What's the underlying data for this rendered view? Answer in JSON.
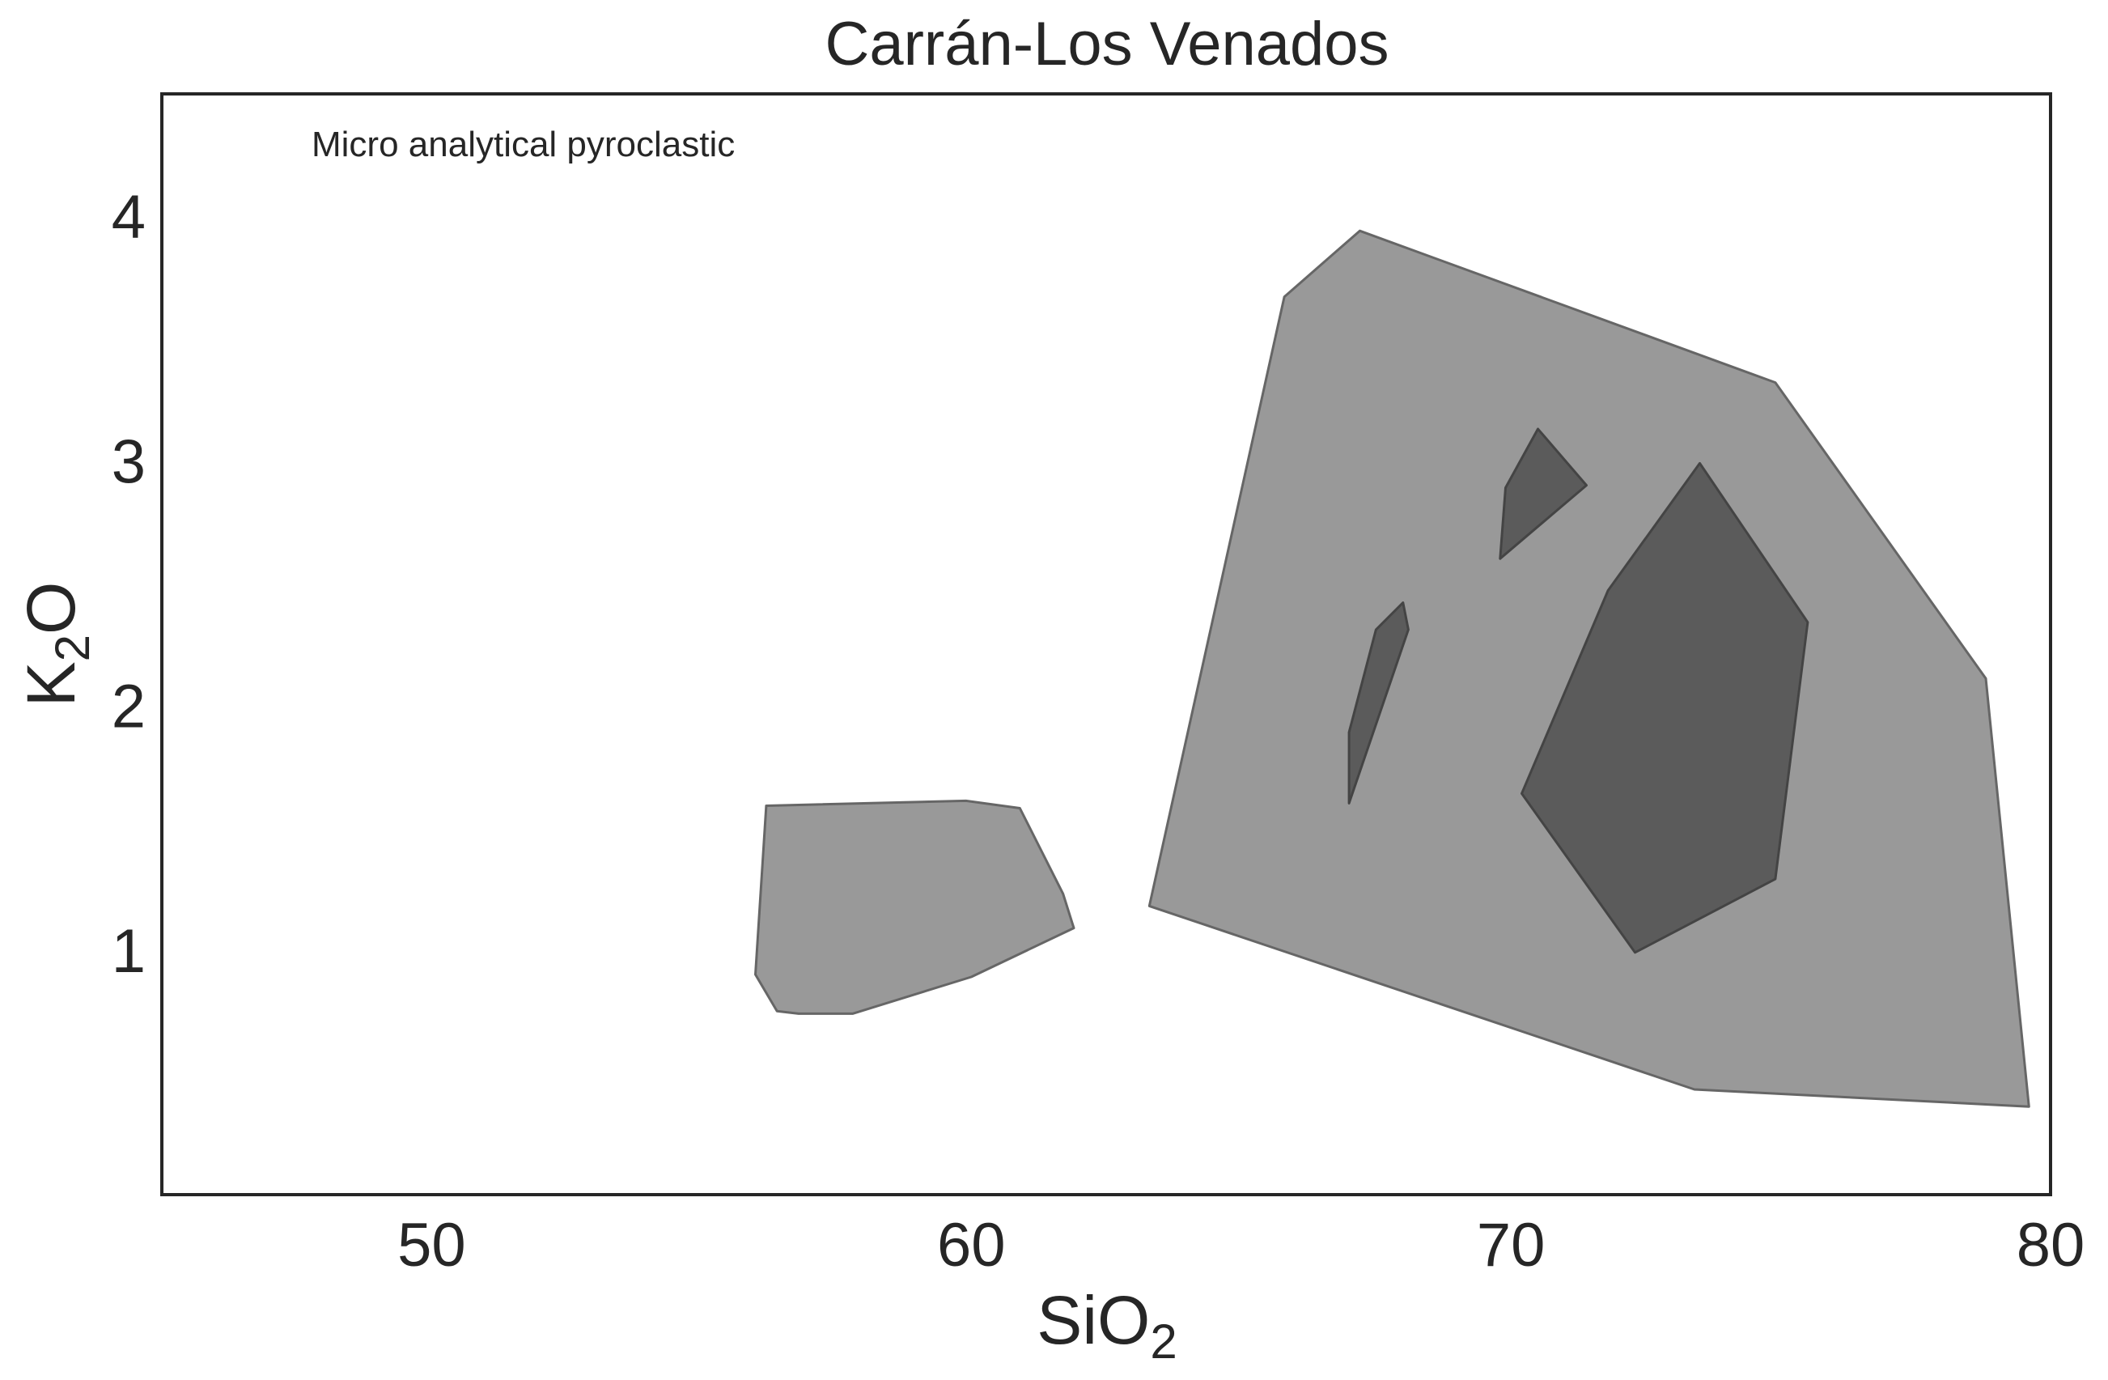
{
  "chart_data": {
    "type": "area",
    "title": "Carrán-Los Venados",
    "annotation": "Micro analytical pyroclastic",
    "xlabel": {
      "base": "SiO",
      "sub": "2"
    },
    "ylabel": {
      "base": "K",
      "sub": "2",
      "tail": "O"
    },
    "xlim": [
      45,
      80
    ],
    "ylim": [
      0,
      4.5
    ],
    "xticks": [
      50,
      60,
      70,
      80
    ],
    "yticks": [
      1,
      2,
      3,
      4
    ],
    "grid": false,
    "colors": {
      "light_fill": "#999999",
      "dark_fill": "#5b5b5b",
      "edge": "#666666",
      "axis": "#262626"
    },
    "regions": [
      {
        "level": "outer",
        "points": [
          [
            56.2,
            1.59
          ],
          [
            59.9,
            1.61
          ],
          [
            60.9,
            1.58
          ],
          [
            61.7,
            1.23
          ],
          [
            61.9,
            1.09
          ],
          [
            60.0,
            0.89
          ],
          [
            57.8,
            0.74
          ],
          [
            56.8,
            0.74
          ],
          [
            56.4,
            0.75
          ],
          [
            56.0,
            0.9
          ]
        ]
      },
      {
        "level": "outer",
        "points": [
          [
            63.3,
            1.18
          ],
          [
            65.8,
            3.67
          ],
          [
            67.2,
            3.94
          ],
          [
            74.9,
            3.32
          ],
          [
            78.8,
            2.11
          ],
          [
            79.6,
            0.36
          ],
          [
            73.4,
            0.43
          ]
        ]
      },
      {
        "level": "inner",
        "points": [
          [
            69.9,
            2.89
          ],
          [
            70.5,
            3.13
          ],
          [
            71.4,
            2.9
          ],
          [
            69.8,
            2.6
          ]
        ]
      },
      {
        "level": "inner",
        "points": [
          [
            67.0,
            1.89
          ],
          [
            67.5,
            2.31
          ],
          [
            68.0,
            2.42
          ],
          [
            68.1,
            2.31
          ],
          [
            67.0,
            1.6
          ]
        ]
      },
      {
        "level": "inner",
        "points": [
          [
            70.2,
            1.64
          ],
          [
            71.8,
            2.47
          ],
          [
            73.5,
            2.99
          ],
          [
            75.5,
            2.34
          ],
          [
            74.9,
            1.29
          ],
          [
            72.3,
            0.99
          ]
        ]
      }
    ]
  }
}
